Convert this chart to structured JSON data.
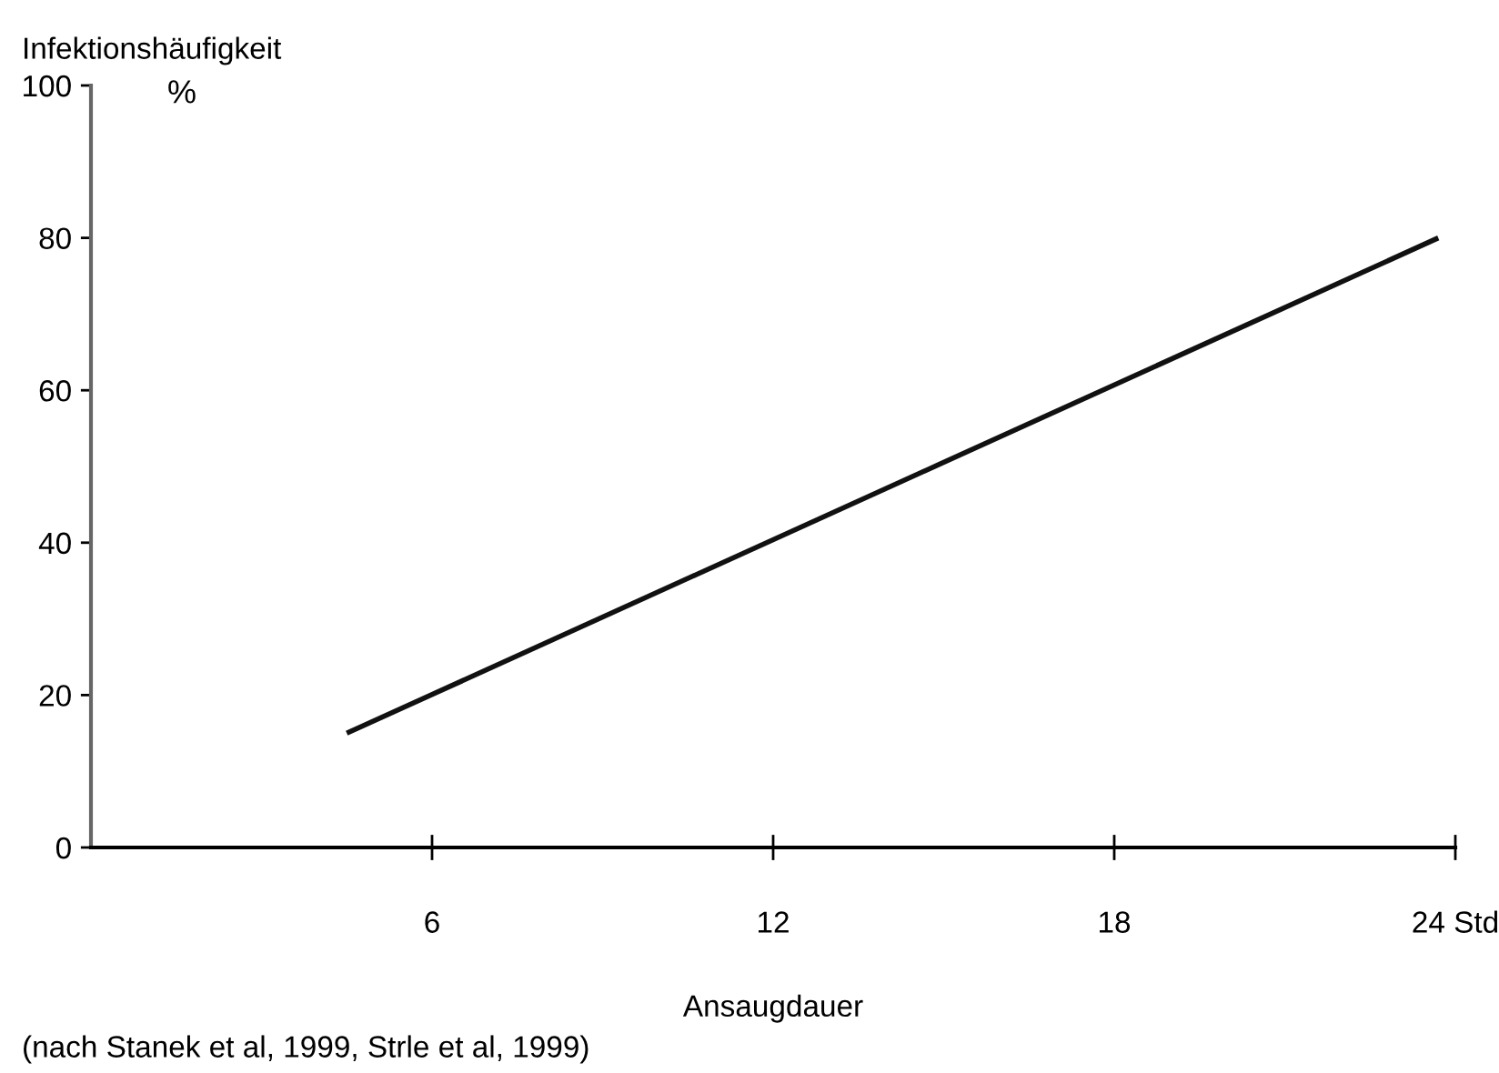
{
  "chart_data": {
    "type": "line",
    "ylabel": "Infektionshäufigkeit",
    "xlabel": "Ansaugdauer",
    "annotations": [
      "%",
      "(nach Stanek et al, 1999, Strle et al, 1999)"
    ],
    "x": [
      4.5,
      23.7
    ],
    "series": [
      {
        "color": "#111111",
        "values": [
          15,
          80
        ]
      }
    ],
    "xlim": [
      0,
      24
    ],
    "ylim": [
      0,
      100
    ],
    "xticks": [
      6,
      12,
      18,
      {
        "value": 24,
        "label": "24 Std"
      }
    ],
    "yticks": [
      0,
      20,
      40,
      60,
      80,
      100
    ],
    "grid": false,
    "marker": "none",
    "line_style": "solid"
  }
}
